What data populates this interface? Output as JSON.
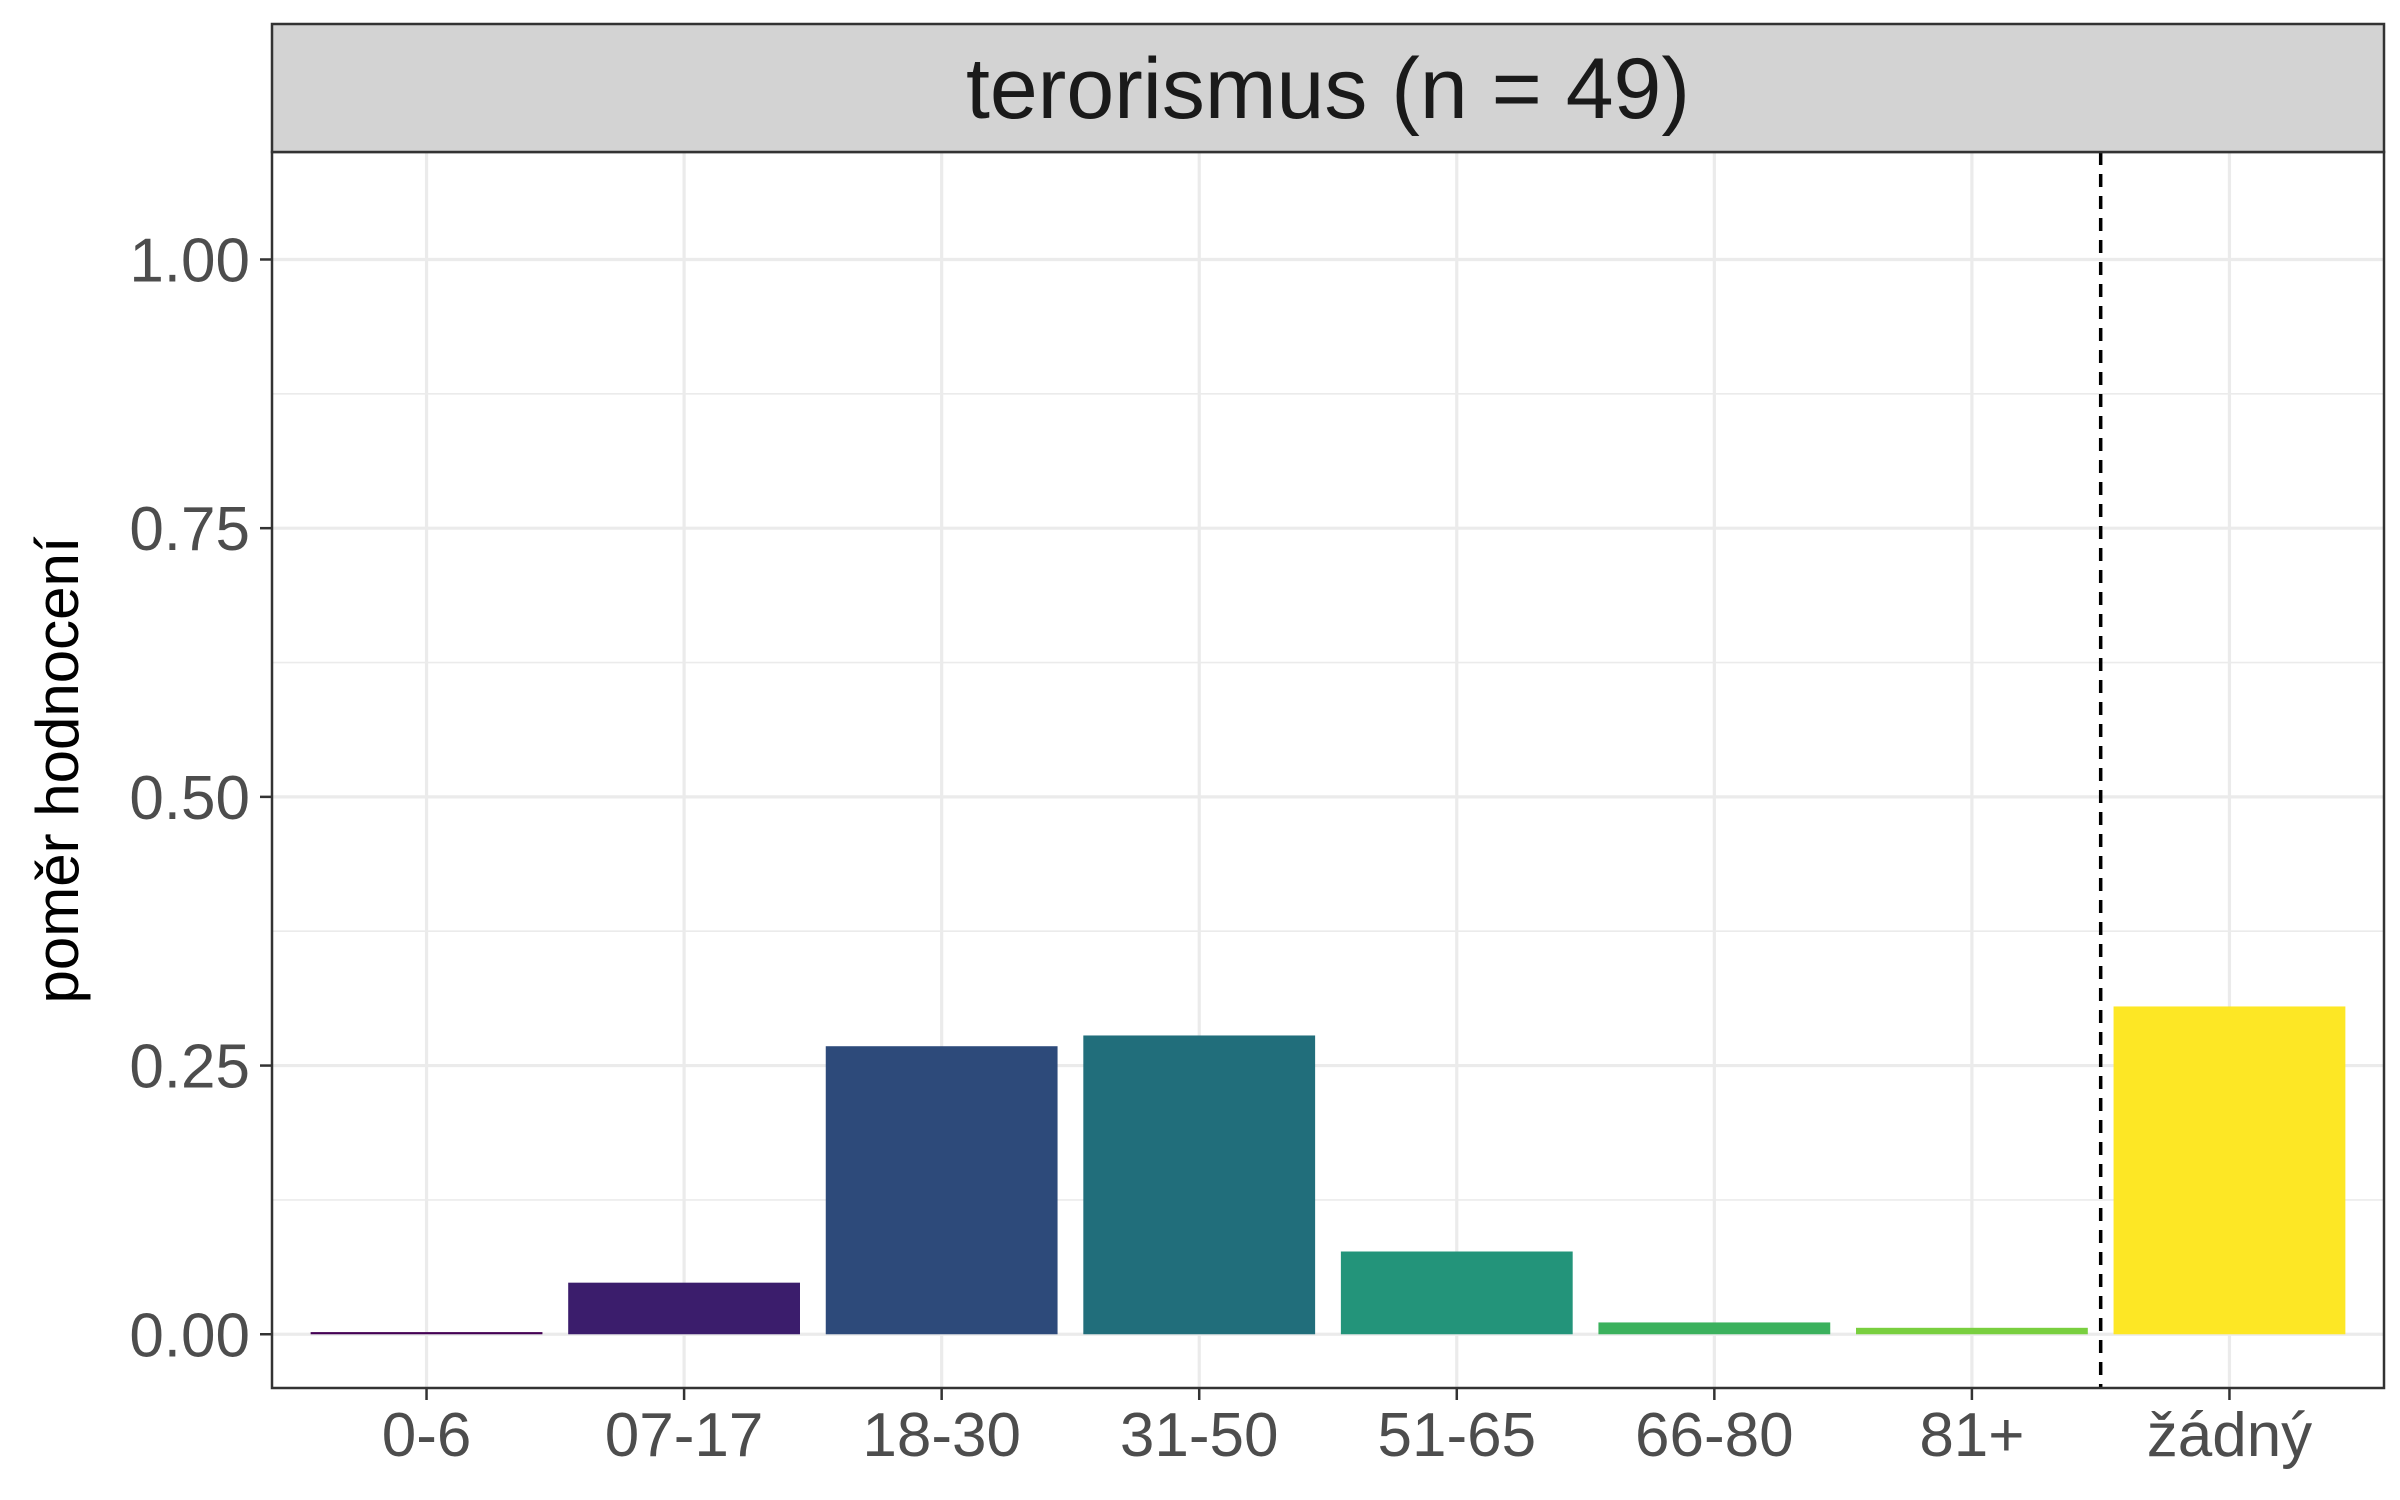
{
  "chart_data": {
    "type": "bar",
    "facet_title": "terorismus (n = 49)",
    "ylabel": "poměr hodnocení",
    "xlabel": "",
    "categories": [
      "0-6",
      "07-17",
      "18-30",
      "31-50",
      "51-65",
      "66-80",
      "81+",
      "žádný"
    ],
    "values": [
      0.002,
      0.048,
      0.268,
      0.278,
      0.077,
      0.011,
      0.006,
      0.305
    ],
    "colors": [
      "#440154",
      "#3B1D6C",
      "#2D4A7A",
      "#216E7B",
      "#23947A",
      "#3BB15D",
      "#79CF3F",
      "#FDE725"
    ],
    "yticks": [
      0.0,
      0.25,
      0.5,
      0.75,
      1.0
    ],
    "ytick_labels": [
      "0.00",
      "0.25",
      "0.50",
      "0.75",
      "1.00"
    ],
    "ylim": [
      -0.05,
      1.1
    ],
    "separator_after_category": "81+",
    "grid": true,
    "strip_color": "#D3D3D3"
  }
}
